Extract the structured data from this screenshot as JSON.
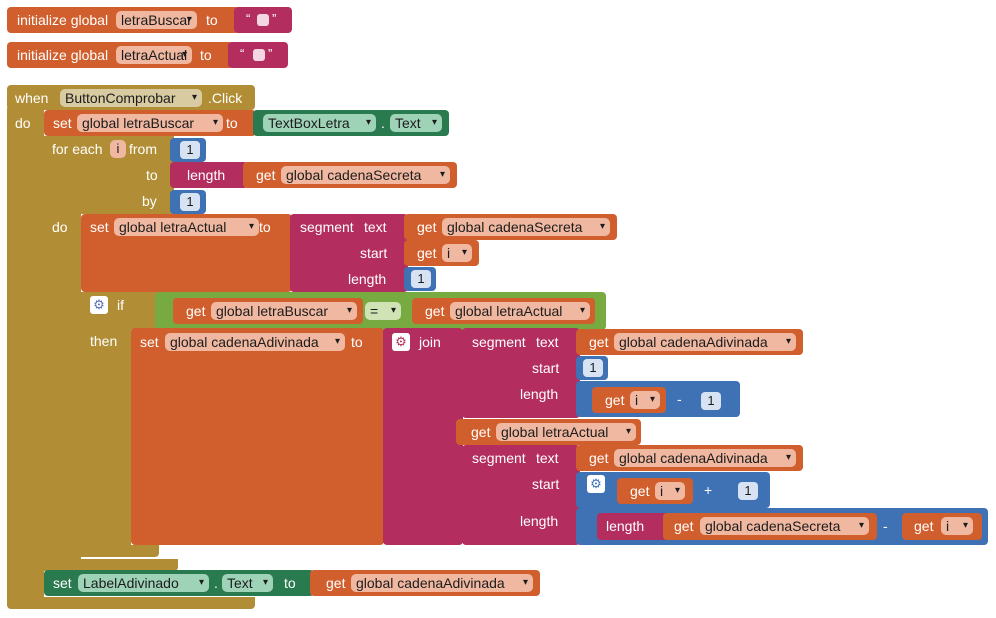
{
  "kw": {
    "initialize_global": "initialize global",
    "to": "to",
    "when": "when",
    "click": ".Click",
    "do": "do",
    "set": "set",
    "for_each": "for each",
    "from": "from",
    "by": "by",
    "length": "length",
    "get": "get",
    "segment": "segment",
    "text": "text",
    "start": "start",
    "if": "if",
    "then": "then",
    "join": "join",
    "dot": ".",
    "minus": "-",
    "plus": "+",
    "open_quote": "“",
    "close_quote": "”"
  },
  "vars": {
    "letraBuscar": "letraBuscar",
    "letraActual": "letraActual",
    "global_letraBuscar": "global letraBuscar",
    "global_letraActual": "global letraActual",
    "global_cadenaSecreta": "global cadenaSecreta",
    "global_cadenaAdivinada": "global cadenaAdivinada",
    "i": "i"
  },
  "components": {
    "button": "ButtonComprobar",
    "textbox": "TextBoxLetra",
    "label": "LabelAdivinado",
    "text_prop": "Text"
  },
  "ops": {
    "equals": "="
  },
  "numbers": {
    "from": "1",
    "by": "1",
    "length_lit": "1",
    "start_lit": "1",
    "minus_lit": "1",
    "plus_lit": "1"
  },
  "icons": {
    "mutator": "gear-icon",
    "dropdown": "caret-down-icon"
  },
  "colors": {
    "variables": "#d05f2d",
    "control": "#b18e35",
    "math": "#3f71b5",
    "text": "#b32d5e",
    "components": "#2a7a4f",
    "logic": "#77ab41"
  }
}
